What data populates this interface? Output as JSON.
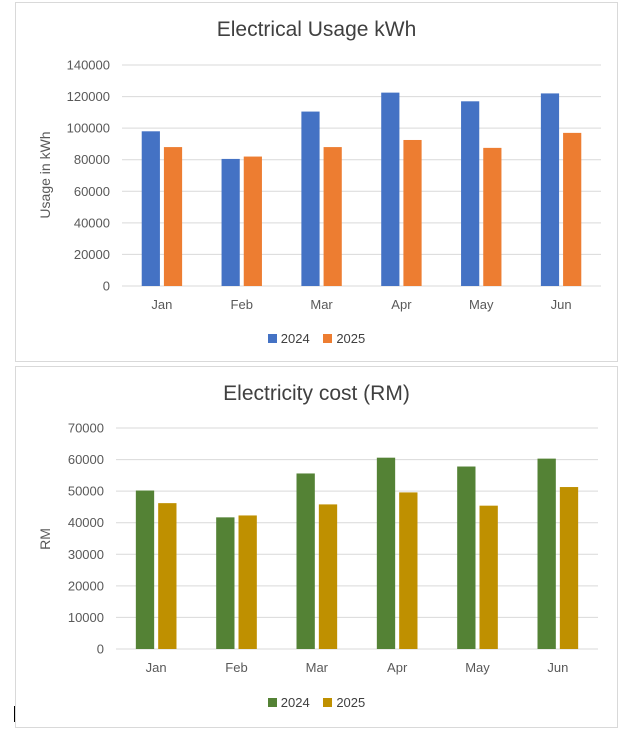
{
  "chart_data": [
    {
      "id": "usage",
      "type": "bar",
      "title": "Electrical Usage kWh",
      "xlabel": "",
      "ylabel": "Usage in kWh",
      "categories": [
        "Jan",
        "Feb",
        "Mar",
        "Apr",
        "May",
        "Jun"
      ],
      "series": [
        {
          "name": "2024",
          "color": "#4472c4",
          "values": [
            98000,
            80500,
            110500,
            122500,
            117000,
            122000
          ]
        },
        {
          "name": "2025",
          "color": "#ed7d31",
          "values": [
            88000,
            82000,
            88000,
            92500,
            87500,
            97000
          ]
        }
      ],
      "ylim": [
        0,
        140000
      ],
      "yticks": [
        "0",
        "20000",
        "40000",
        "60000",
        "80000",
        "100000",
        "120000",
        "140000"
      ],
      "grid": true,
      "legend": "bottom"
    },
    {
      "id": "cost",
      "type": "bar",
      "title": "Electricity cost (RM)",
      "xlabel": "",
      "ylabel": "RM",
      "categories": [
        "Jan",
        "Feb",
        "Mar",
        "Apr",
        "May",
        "Jun"
      ],
      "series": [
        {
          "name": "2024",
          "color": "#548235",
          "values": [
            50200,
            41700,
            55600,
            60600,
            57800,
            60300
          ]
        },
        {
          "name": "2025",
          "color": "#bf9000",
          "values": [
            46200,
            42300,
            45800,
            49600,
            45400,
            51300
          ]
        }
      ],
      "ylim": [
        0,
        70000
      ],
      "yticks": [
        "0",
        "10000",
        "20000",
        "30000",
        "40000",
        "50000",
        "60000",
        "70000"
      ],
      "grid": true,
      "legend": "bottom"
    }
  ]
}
